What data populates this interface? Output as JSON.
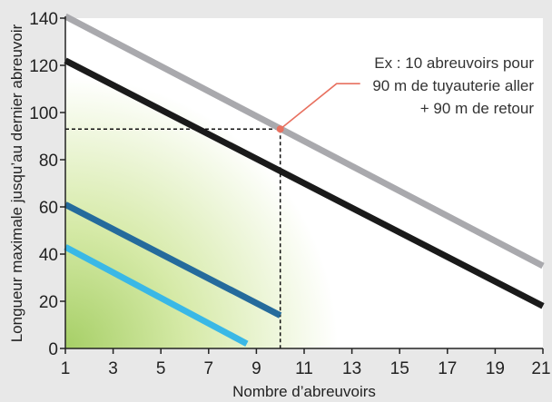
{
  "chart_data": {
    "type": "line",
    "title": "",
    "xlabel": "Nombre d’abreuvoirs",
    "ylabel": "Longueur maximale jusqu’au dernier abreuvoir",
    "xlim": [
      1,
      21
    ],
    "ylim": [
      0,
      140
    ],
    "xticks": [
      1,
      3,
      5,
      7,
      9,
      11,
      13,
      15,
      17,
      19,
      21
    ],
    "yticks": [
      0,
      20,
      40,
      60,
      80,
      100,
      120,
      140
    ],
    "grid": false,
    "colors": {
      "background": "#e8e8e8",
      "gradient_strong": "#a6cf66",
      "gradient_light": "#ffffff",
      "annotation_line": "#e8705f",
      "guide_line": "#111111"
    },
    "series": [
      {
        "color": "#a9a9ad",
        "x": [
          1,
          21
        ],
        "y": [
          141,
          35
        ]
      },
      {
        "color": "#1a1a1a",
        "x": [
          1,
          21
        ],
        "y": [
          122,
          18
        ]
      },
      {
        "color": "#256b9c",
        "x": [
          1,
          10
        ],
        "y": [
          61,
          14
        ]
      },
      {
        "color": "#3ab8e6",
        "x": [
          1,
          8.6
        ],
        "y": [
          43,
          2
        ]
      }
    ],
    "annotation": {
      "lines": [
        "Ex : 10 abreuvoirs pour",
        "90 m de tuyauterie aller",
        "+ 90 m de retour"
      ],
      "point": {
        "x": 10,
        "y": 93
      }
    }
  }
}
